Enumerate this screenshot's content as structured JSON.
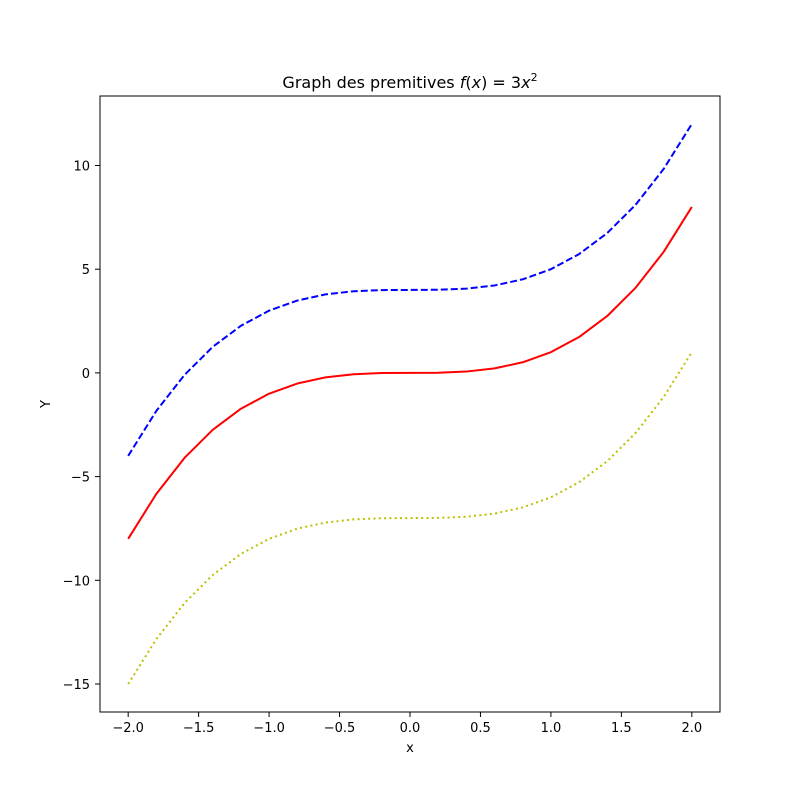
{
  "chart_data": {
    "type": "line",
    "title_text": "Graph des premitives ",
    "title_math": {
      "func": "f",
      "arg": "x",
      "eq": " = 3",
      "var": "x",
      "exp": "2"
    },
    "xlabel": "x",
    "ylabel": "Y",
    "xlim": [
      -2.2,
      2.2
    ],
    "ylim": [
      -16.35,
      13.35
    ],
    "x_ticks": [
      -2.0,
      -1.5,
      -1.0,
      -0.5,
      0.0,
      0.5,
      1.0,
      1.5,
      2.0
    ],
    "x_tick_labels": [
      "−2.0",
      "−1.5",
      "−1.0",
      "−0.5",
      "0.0",
      "0.5",
      "1.0",
      "1.5",
      "2.0"
    ],
    "y_ticks": [
      -15,
      -10,
      -5,
      0,
      5,
      10
    ],
    "y_tick_labels": [
      "−15",
      "−10",
      "−5",
      "0",
      "5",
      "10"
    ],
    "grid": false,
    "series": [
      {
        "color": "#0000ff",
        "style": "dashed",
        "x": [
          -2.0,
          -1.8,
          -1.6,
          -1.4,
          -1.2,
          -1.0,
          -0.8,
          -0.6,
          -0.4,
          -0.2,
          0.0,
          0.2,
          0.4,
          0.6,
          0.8,
          1.0,
          1.2,
          1.4,
          1.6,
          1.8,
          2.0
        ],
        "y": [
          -4.0,
          -1.832,
          -0.096,
          1.256,
          2.272,
          3.0,
          3.488,
          3.784,
          3.936,
          3.992,
          4.0,
          4.008,
          4.064,
          4.216,
          4.512,
          5.0,
          5.728,
          6.744,
          8.096,
          9.832,
          12.0
        ]
      },
      {
        "color": "#ff0000",
        "style": "solid",
        "x": [
          -2.0,
          -1.8,
          -1.6,
          -1.4,
          -1.2,
          -1.0,
          -0.8,
          -0.6,
          -0.4,
          -0.2,
          0.0,
          0.2,
          0.4,
          0.6,
          0.8,
          1.0,
          1.2,
          1.4,
          1.6,
          1.8,
          2.0
        ],
        "y": [
          -8.0,
          -5.832,
          -4.096,
          -2.744,
          -1.728,
          -1.0,
          -0.512,
          -0.216,
          -0.064,
          -0.008,
          0.0,
          0.008,
          0.064,
          0.216,
          0.512,
          1.0,
          1.728,
          2.744,
          4.096,
          5.832,
          8.0
        ]
      },
      {
        "color": "#bfbf00",
        "style": "dotted",
        "x": [
          -2.0,
          -1.8,
          -1.6,
          -1.4,
          -1.2,
          -1.0,
          -0.8,
          -0.6,
          -0.4,
          -0.2,
          0.0,
          0.2,
          0.4,
          0.6,
          0.8,
          1.0,
          1.2,
          1.4,
          1.6,
          1.8,
          2.0
        ],
        "y": [
          -15.0,
          -12.832,
          -11.096,
          -9.744,
          -8.728,
          -8.0,
          -7.512,
          -7.216,
          -7.064,
          -7.008,
          -7.0,
          -6.992,
          -6.936,
          -6.784,
          -6.488,
          -6.0,
          -5.272,
          -4.256,
          -2.904,
          -1.168,
          1.0
        ]
      }
    ]
  }
}
